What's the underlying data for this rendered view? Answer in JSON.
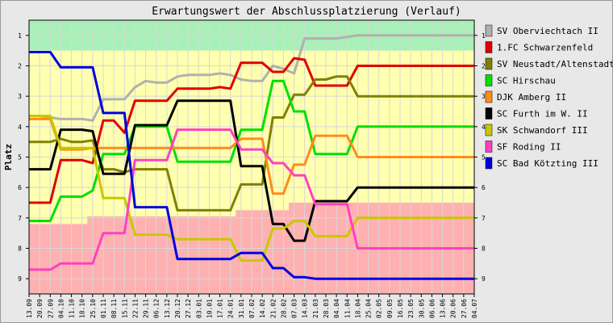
{
  "chart_data": {
    "type": "line",
    "title": "Erwartungswert der Abschlussplatzierung (Verlauf)",
    "ylabel": "Platz",
    "xlabel": "",
    "ylim": [
      1,
      9
    ],
    "y_inverted": true,
    "y_ticks": [
      "1",
      "2",
      "3",
      "4",
      "5",
      "6",
      "7",
      "8",
      "9"
    ],
    "legend_position": "right",
    "x": [
      "13.09",
      "20.09",
      "27.09",
      "04.10",
      "11.10",
      "18.10",
      "25.10",
      "01.11",
      "08.11",
      "15.11",
      "22.11",
      "29.11",
      "06.12",
      "13.12",
      "20.12",
      "27.12",
      "03.01",
      "10.01",
      "17.01",
      "24.01",
      "31.01",
      "07.02",
      "14.02",
      "21.02",
      "28.02",
      "07.03",
      "14.03",
      "21.03",
      "28.03",
      "04.04",
      "11.04",
      "18.04",
      "25.04",
      "02.05",
      "09.05",
      "16.05",
      "23.05",
      "30.05",
      "06.06",
      "13.06",
      "20.06",
      "27.06",
      "04.07"
    ],
    "zones": [
      {
        "from": 0.5,
        "to": 1.5,
        "color": "#a8f0b8"
      },
      {
        "from": 1.5,
        "to": 6.5,
        "color": "#ffffb0"
      },
      {
        "from": 6.5,
        "to": 9.5,
        "color": "#ffb0b0"
      }
    ],
    "zone_boundary_changes": {
      "upper_boundary": [
        {
          "index": 0,
          "value": 1.5
        }
      ],
      "lower_boundary": [
        {
          "index": 0,
          "value": 7.2
        },
        {
          "index": 6,
          "value": 6.95
        },
        {
          "index": 20,
          "value": 6.75
        },
        {
          "index": 25,
          "value": 6.5
        }
      ]
    },
    "series": [
      {
        "name": "SV Oberviechtach II",
        "color": "#b0b0b0",
        "values": [
          3.65,
          3.65,
          3.7,
          3.75,
          3.75,
          3.75,
          3.8,
          3.1,
          3.1,
          3.1,
          2.7,
          2.5,
          2.55,
          2.55,
          2.35,
          2.3,
          2.3,
          2.3,
          2.25,
          2.3,
          2.45,
          2.5,
          2.5,
          2.0,
          2.1,
          2.25,
          1.1,
          1.1,
          1.1,
          1.1,
          1.05,
          1.0,
          1.0,
          1.0,
          1.0,
          1.0,
          1.0,
          1.0,
          1.0,
          1.0,
          1.0,
          1.0,
          1.0
        ]
      },
      {
        "name": "1.FC Schwarzenfeld",
        "color": "#e00000",
        "values": [
          6.5,
          6.5,
          6.5,
          5.1,
          5.1,
          5.1,
          5.2,
          3.8,
          3.8,
          4.2,
          3.15,
          3.15,
          3.15,
          3.15,
          2.75,
          2.75,
          2.75,
          2.75,
          2.7,
          2.75,
          1.9,
          1.9,
          1.9,
          2.2,
          2.2,
          1.75,
          1.8,
          2.65,
          2.65,
          2.65,
          2.65,
          2.0,
          2.0,
          2.0,
          2.0,
          2.0,
          2.0,
          2.0,
          2.0,
          2.0,
          2.0,
          2.0,
          2.0
        ]
      },
      {
        "name": "SV Neustadt/Altenstadt",
        "color": "#808000",
        "values": [
          4.5,
          4.5,
          4.5,
          4.4,
          4.5,
          4.5,
          4.45,
          5.4,
          5.4,
          5.5,
          5.4,
          5.4,
          5.4,
          5.4,
          6.75,
          6.75,
          6.75,
          6.75,
          6.75,
          6.75,
          5.9,
          5.9,
          5.9,
          3.7,
          3.7,
          2.95,
          2.95,
          2.45,
          2.45,
          2.35,
          2.35,
          3.0,
          3.0,
          3.0,
          3.0,
          3.0,
          3.0,
          3.0,
          3.0,
          3.0,
          3.0,
          3.0,
          3.0
        ]
      },
      {
        "name": "SC Hirschau",
        "color": "#00e000",
        "values": [
          7.1,
          7.1,
          7.1,
          6.3,
          6.3,
          6.3,
          6.1,
          4.9,
          4.9,
          4.9,
          4.0,
          4.0,
          4.0,
          4.0,
          5.15,
          5.15,
          5.15,
          5.15,
          5.15,
          5.15,
          4.1,
          4.1,
          4.1,
          2.5,
          2.5,
          3.5,
          3.5,
          4.9,
          4.9,
          4.9,
          4.9,
          4.0,
          4.0,
          4.0,
          4.0,
          4.0,
          4.0,
          4.0,
          4.0,
          4.0,
          4.0,
          4.0,
          4.0
        ]
      },
      {
        "name": "DJK Amberg II",
        "color": "#ff8c1a",
        "values": [
          3.75,
          3.75,
          3.75,
          4.75,
          4.75,
          4.75,
          4.7,
          4.7,
          4.7,
          4.7,
          4.7,
          4.7,
          4.7,
          4.7,
          4.7,
          4.7,
          4.7,
          4.7,
          4.7,
          4.7,
          4.4,
          4.4,
          4.4,
          6.2,
          6.2,
          5.25,
          5.25,
          4.3,
          4.3,
          4.3,
          4.3,
          5.0,
          5.0,
          5.0,
          5.0,
          5.0,
          5.0,
          5.0,
          5.0,
          5.0,
          5.0,
          5.0,
          5.0
        ]
      },
      {
        "name": "SC Furth im W. II",
        "color": "#000000",
        "values": [
          5.4,
          5.4,
          5.4,
          4.1,
          4.1,
          4.1,
          4.15,
          5.55,
          5.55,
          5.55,
          3.95,
          3.95,
          3.95,
          3.95,
          3.15,
          3.15,
          3.15,
          3.15,
          3.15,
          3.15,
          5.3,
          5.3,
          5.3,
          7.2,
          7.2,
          7.75,
          7.75,
          6.45,
          6.45,
          6.45,
          6.45,
          6.0,
          6.0,
          6.0,
          6.0,
          6.0,
          6.0,
          6.0,
          6.0,
          6.0,
          6.0,
          6.0,
          6.0
        ]
      },
      {
        "name": "SK Schwandorf III",
        "color": "#c8c800",
        "values": [
          3.65,
          3.65,
          3.65,
          4.7,
          4.7,
          4.7,
          4.7,
          6.35,
          6.35,
          6.35,
          7.55,
          7.55,
          7.55,
          7.55,
          7.7,
          7.7,
          7.7,
          7.7,
          7.7,
          7.7,
          8.4,
          8.4,
          8.4,
          7.35,
          7.35,
          7.1,
          7.1,
          7.6,
          7.6,
          7.6,
          7.6,
          7.0,
          7.0,
          7.0,
          7.0,
          7.0,
          7.0,
          7.0,
          7.0,
          7.0,
          7.0,
          7.0,
          7.0
        ]
      },
      {
        "name": "SF Roding II",
        "color": "#ff40c0",
        "values": [
          8.7,
          8.7,
          8.7,
          8.5,
          8.5,
          8.5,
          8.5,
          7.5,
          7.5,
          7.5,
          5.1,
          5.1,
          5.1,
          5.1,
          4.1,
          4.1,
          4.1,
          4.1,
          4.1,
          4.1,
          4.75,
          4.75,
          4.75,
          5.2,
          5.2,
          5.6,
          5.6,
          6.55,
          6.55,
          6.55,
          6.55,
          8.0,
          8.0,
          8.0,
          8.0,
          8.0,
          8.0,
          8.0,
          8.0,
          8.0,
          8.0,
          8.0,
          8.0
        ]
      },
      {
        "name": "SC Bad Kötzting III",
        "color": "#0000e0",
        "values": [
          1.55,
          1.55,
          1.55,
          2.05,
          2.05,
          2.05,
          2.05,
          3.55,
          3.55,
          3.55,
          6.65,
          6.65,
          6.65,
          6.65,
          8.35,
          8.35,
          8.35,
          8.35,
          8.35,
          8.35,
          8.15,
          8.15,
          8.15,
          8.65,
          8.65,
          8.95,
          8.95,
          9.0,
          9.0,
          9.0,
          9.0,
          9.0,
          9.0,
          9.0,
          9.0,
          9.0,
          9.0,
          9.0,
          9.0,
          9.0,
          9.0,
          9.0,
          9.0
        ]
      }
    ]
  }
}
